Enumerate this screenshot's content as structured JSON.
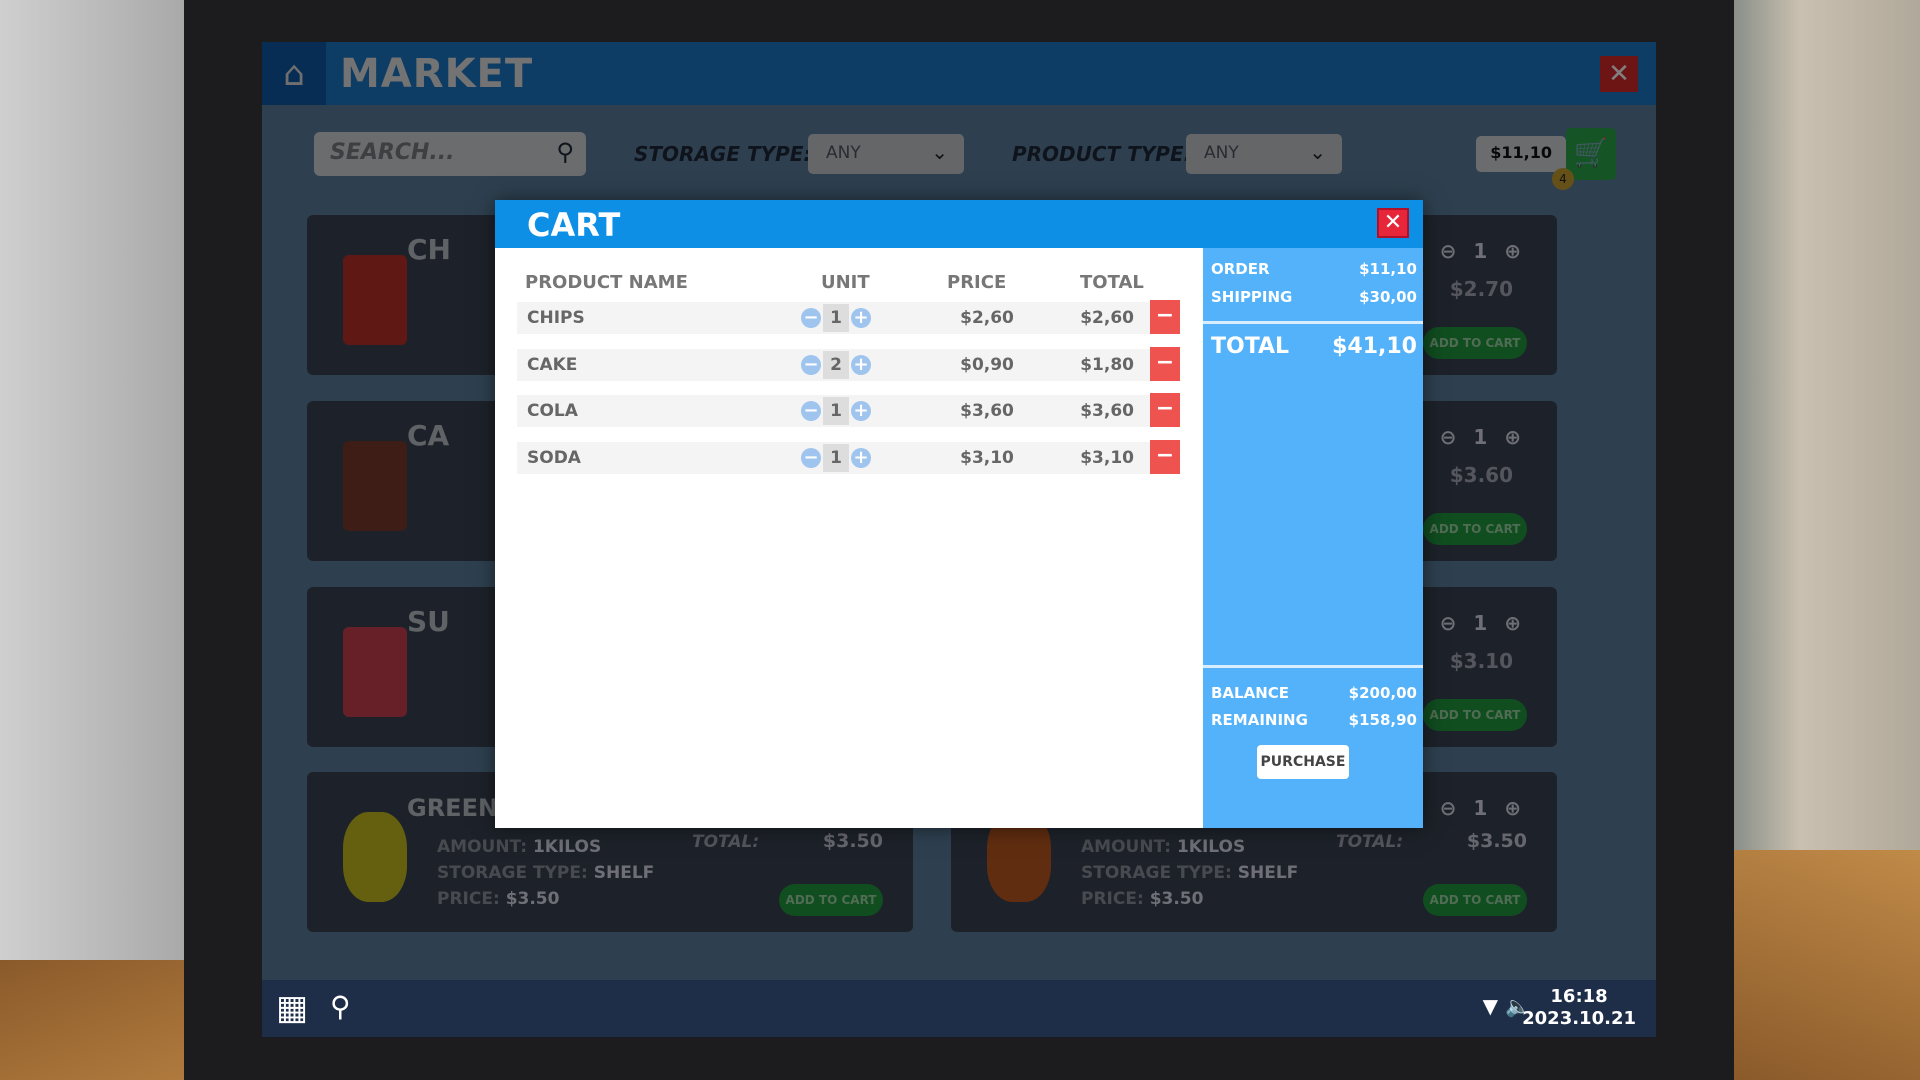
{
  "market": {
    "title": "MARKET",
    "icon": "basket-icon",
    "close": "✕",
    "search_placeholder": "SEARCH...",
    "storage_label": "STORAGE TYPE:",
    "storage_value": "ANY",
    "product_label": "PRODUCT TYPE:",
    "product_value": "ANY",
    "cart_amount": "$11,10",
    "cart_badge": "4"
  },
  "cards_left": [
    {
      "name": "CH"
    },
    {
      "name": "CA"
    },
    {
      "name": "SU"
    },
    {
      "name": "GREEN",
      "amount_label": "AMOUNT:",
      "amount": "1KILOS",
      "storage_label": "STORAGE TYPE:",
      "storage": "SHELF",
      "price_label": "PRICE:",
      "price": "$3.50",
      "total_label": "TOTAL:",
      "total": "$3.50",
      "add": "ADD TO CART"
    }
  ],
  "cards_right": [
    {
      "qty": "1",
      "price": "$2.70",
      "add": "ADD TO CART"
    },
    {
      "qty": "1",
      "price": "$3.60",
      "add": "ADD TO CART"
    },
    {
      "qty": "1",
      "price": "$3.10",
      "add": "ADD TO CART"
    },
    {
      "qty": "1",
      "amount_label": "AMOUNT:",
      "amount": "1KILOS",
      "storage_label": "STORAGE TYPE:",
      "storage": "SHELF",
      "price_label": "PRICE:",
      "price": "$3.50",
      "total_label": "TOTAL:",
      "total": "$3.50",
      "add": "ADD TO CART"
    }
  ],
  "cart": {
    "title": "CART",
    "close": "✕",
    "columns": [
      "PRODUCT NAME",
      "UNIT",
      "PRICE",
      "TOTAL"
    ],
    "rows": [
      {
        "name": "CHIPS",
        "qty": "1",
        "price": "$2,60",
        "total": "$2,60"
      },
      {
        "name": "CAKE",
        "qty": "2",
        "price": "$0,90",
        "total": "$1,80"
      },
      {
        "name": "COLA",
        "qty": "1",
        "price": "$3,60",
        "total": "$3,60"
      },
      {
        "name": "SODA",
        "qty": "1",
        "price": "$3,10",
        "total": "$3,10"
      }
    ],
    "summary": {
      "order_label": "ORDER",
      "order": "$11,10",
      "shipping_label": "SHIPPING",
      "shipping": "$30,00",
      "total_label": "TOTAL",
      "total": "$41,10",
      "balance_label": "BALANCE",
      "balance": "$200,00",
      "remaining_label": "REMAINING",
      "remaining": "$158,90",
      "purchase": "PURCHASE"
    }
  },
  "taskbar": {
    "time": "16:18",
    "date": "2023.10.21"
  },
  "colors": {
    "cart_header": "#0d8fe6",
    "summary_panel": "#54b2fb",
    "remove": "#ef5350",
    "add_to_cart": "#1f9a3e"
  }
}
